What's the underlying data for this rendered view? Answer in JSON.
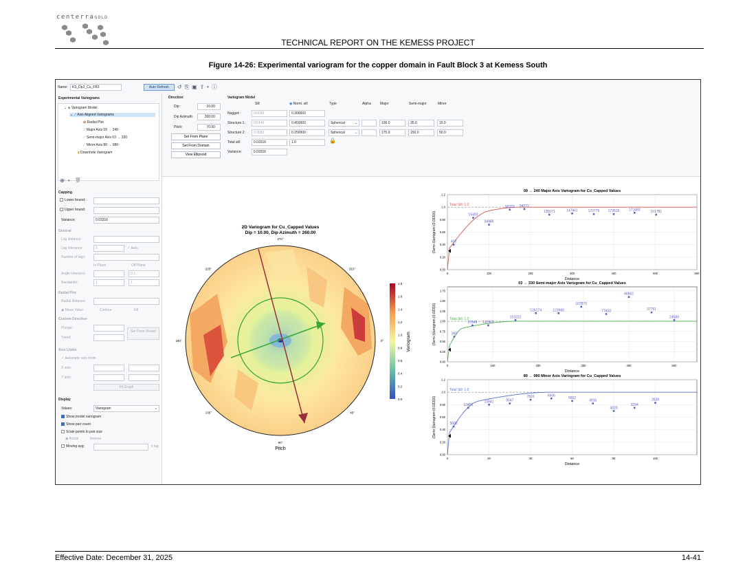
{
  "logo": {
    "word": "centerra",
    "word_gold": "GOLD"
  },
  "report": {
    "header": "TECHNICAL REPORT ON THE KEMESS PROJECT",
    "caption": "Figure 14-26: Experimental variogram for the copper domain in Fault Block 3 at Kemess South",
    "footer_left": "Effective Date: December 31, 2025",
    "footer_right": "14-41"
  },
  "toolbar": {
    "name_label": "Name:",
    "name_value": "KS_Dp2_Cu_FB3",
    "auto_refresh": "Auto Refresh"
  },
  "tree": {
    "heading": "Experimental Variograms",
    "items": [
      "Variogram Model",
      "Axis Aligned Variograms",
      "Radial Plot",
      "Major Axis 09 → 240",
      "Semi-major Axis 03 → 330",
      "Minor Axis 80 → 080",
      "Downhole Variogram"
    ]
  },
  "capping": {
    "heading": "Capping",
    "lower": "Lower bound:",
    "upper": "Upper bound:",
    "variance_label": "Variance:",
    "variance_value": "0.03316"
  },
  "general": {
    "heading": "General",
    "lag_distance": "Lag distance:",
    "lag_tolerance": "Lag tolerance:",
    "lag_tol_value": "0",
    "auto": "Auto",
    "num_lags": "Number of lags:",
    "in_plane": "In Plane",
    "off_plane": "Off Plane",
    "angle_tol": "Angle tolerance:",
    "angle_off_value": "0.1",
    "bandwidth": "Bandwidth:",
    "bw_in": "1",
    "bw_off": "1"
  },
  "radial": {
    "heading": "Radial Plot",
    "radial_distance": "Radial distance:",
    "mean_value": "Mean Value",
    "contour": "Contour",
    "fill": "Fill"
  },
  "custom": {
    "heading": "Custom Direction",
    "plunge": "Plunge:",
    "trend": "Trend:",
    "set_from_viewer": "Set From Viewer"
  },
  "axis_limits": {
    "heading": "Axis Limits",
    "auto": "Automatic axis limits",
    "xaxis": "X axis:",
    "yaxis": "Y axis:",
    "fit": "Fit Graph"
  },
  "display": {
    "heading": "Display",
    "values_label": "Values:",
    "values_value": "Variogram",
    "show_model": "Show model variogram",
    "show_pair": "Show pair count",
    "scale_points": "Scale points to pair size",
    "actual": "Actual",
    "inverse": "Inverse",
    "moving_avg": "Moving avg:",
    "lag_unit": "x lag"
  },
  "direction": {
    "heading": "Direction",
    "dip_label": "Dip:",
    "dip": "10.00",
    "azimuth_label": "Dip Azimuth:",
    "azimuth": "260.00",
    "pitch_label": "Pitch:",
    "pitch": "70.00",
    "set_from_plane": "Set From Plane",
    "set_from_domain": "Set From Domain",
    "view_ellipsoid": "View Ellipsoid"
  },
  "model": {
    "heading": "Variogram Model",
    "cols": {
      "sill": "Sill",
      "norm_sill": "Norm. sill",
      "type": "Type",
      "alpha": "Alpha",
      "major": "Major",
      "semi": "Semi-major",
      "minor": "Minor"
    },
    "rows": [
      {
        "label": "Nugget:",
        "sill": "0.0099",
        "norm": "0.300000",
        "type": "",
        "major": "",
        "semi": "",
        "minor": ""
      },
      {
        "label": "Structure 1:",
        "sill": "0.0149",
        "norm": "0.450000",
        "type": "Spherical",
        "major": "100.0",
        "semi": "35.0",
        "minor": "15.0"
      },
      {
        "label": "Structure 2:",
        "sill": "0.0083",
        "norm": "0.250000",
        "type": "Spherical",
        "major": "175.0",
        "semi": "150.0",
        "minor": "50.0"
      }
    ],
    "total_label": "Total sill:",
    "total_sill": "0.03316",
    "total_norm": "1.0",
    "variance_label": "Variance:",
    "variance": "0.03316"
  },
  "radial_plot": {
    "title": "2D Variogram for Cu_Capped Values",
    "subtitle": "Dip = 10.00, Dip Azimuth = 260.00",
    "angles": [
      {
        "label": "270°"
      },
      {
        "label": "315°"
      },
      {
        "label": "0°"
      },
      {
        "label": "45°"
      },
      {
        "label": "90°"
      },
      {
        "label": "135°"
      },
      {
        "label": "180°"
      },
      {
        "label": "225°"
      }
    ],
    "xlabel": "Pitch",
    "colorbar_label": "Variogram",
    "colorbar_ticks": [
      "0.0",
      "0.2",
      "0.4",
      "0.6",
      "0.8",
      "1.0",
      "1.2",
      "1.4",
      "1.6",
      "1.8"
    ]
  },
  "chart_data": [
    {
      "type": "scatter",
      "title": "09 → 240 Major Axis Variogram for Cu_Capped Values",
      "xlabel": "Distance",
      "ylabel": "(Semi-)Variogram (0.03316)",
      "xlim": [
        0,
        600
      ],
      "ylim": [
        0,
        1.2
      ],
      "xticks": [
        0,
        100,
        200,
        300,
        400,
        500,
        600
      ],
      "yticks": [
        0,
        0.2,
        0.4,
        0.6,
        0.8,
        1.0,
        1.2
      ],
      "sill_label": "Total Sill: 1.0",
      "model": {
        "nugget": 0.3,
        "structures": [
          {
            "sill": 0.45,
            "range": 100
          },
          {
            "sill": 0.25,
            "range": 175
          }
        ]
      },
      "points": [
        {
          "x": 15,
          "y": 0.4,
          "label": "400"
        },
        {
          "x": 62,
          "y": 0.83,
          "label": "15493"
        },
        {
          "x": 100,
          "y": 0.72,
          "label": "34486"
        },
        {
          "x": 150,
          "y": 0.96,
          "label": "96279"
        },
        {
          "x": 185,
          "y": 0.97,
          "label": "84272"
        },
        {
          "x": 245,
          "y": 0.88,
          "label": "135071"
        },
        {
          "x": 300,
          "y": 0.9,
          "label": "147461"
        },
        {
          "x": 352,
          "y": 0.89,
          "label": "170776"
        },
        {
          "x": 400,
          "y": 0.89,
          "label": "172515"
        },
        {
          "x": 450,
          "y": 0.91,
          "label": "171683"
        },
        {
          "x": 502,
          "y": 0.88,
          "label": "161781"
        }
      ]
    },
    {
      "type": "scatter",
      "title": "03 → 330 Semi-major Axis Variogram for Cu_Capped Values",
      "xlabel": "Distance",
      "ylabel": "(Semi-)Variogram (0.03316)",
      "xlim": [
        0,
        550
      ],
      "ylim": [
        0,
        1.85
      ],
      "xticks": [
        0,
        100,
        200,
        300,
        400,
        500
      ],
      "yticks": [
        0,
        0.25,
        0.5,
        0.75,
        1.0,
        1.25,
        1.5,
        1.75
      ],
      "sill_label": "Total Sill: 1.0",
      "model": {
        "nugget": 0.3,
        "structures": [
          {
            "sill": 0.45,
            "range": 35
          },
          {
            "sill": 0.25,
            "range": 150
          }
        ]
      },
      "points": [
        {
          "x": 15,
          "y": 0.62,
          "label": "369"
        },
        {
          "x": 55,
          "y": 0.9,
          "label": "37548"
        },
        {
          "x": 90,
          "y": 0.9,
          "label": "117907"
        },
        {
          "x": 150,
          "y": 1.03,
          "label": "153222"
        },
        {
          "x": 195,
          "y": 1.2,
          "label": "126274"
        },
        {
          "x": 245,
          "y": 1.2,
          "label": "123665"
        },
        {
          "x": 295,
          "y": 1.36,
          "label": "107870"
        },
        {
          "x": 350,
          "y": 1.18,
          "label": "77433"
        },
        {
          "x": 400,
          "y": 1.6,
          "label": "46662"
        },
        {
          "x": 450,
          "y": 1.22,
          "label": "37751"
        },
        {
          "x": 500,
          "y": 1.03,
          "label": "24589"
        }
      ]
    },
    {
      "type": "scatter",
      "title": "80 → 080 Minor Axis Variogram for Cu_Capped Values",
      "xlabel": "Distance",
      "ylabel": "(Semi-)Variogram (0.03316)",
      "xlim": [
        0,
        120
      ],
      "ylim": [
        0,
        1.2
      ],
      "xticks": [
        0,
        20,
        40,
        60,
        80,
        100
      ],
      "yticks": [
        0,
        0.2,
        0.4,
        0.6,
        0.8,
        1.0,
        1.2
      ],
      "sill_label": "Total Sill: 1.0",
      "model": {
        "nugget": 0.3,
        "structures": [
          {
            "sill": 0.45,
            "range": 15
          },
          {
            "sill": 0.25,
            "range": 50
          }
        ]
      },
      "points": [
        {
          "x": 3,
          "y": 0.45,
          "label": "5602"
        },
        {
          "x": 10,
          "y": 0.75,
          "label": "12450"
        },
        {
          "x": 20,
          "y": 0.8,
          "label": "10641"
        },
        {
          "x": 30,
          "y": 0.82,
          "label": "9047"
        },
        {
          "x": 40,
          "y": 0.88,
          "label": "7816"
        },
        {
          "x": 50,
          "y": 0.9,
          "label": "6606"
        },
        {
          "x": 60,
          "y": 0.86,
          "label": "5652"
        },
        {
          "x": 70,
          "y": 0.82,
          "label": "4915"
        },
        {
          "x": 80,
          "y": 0.7,
          "label": "4020"
        },
        {
          "x": 90,
          "y": 0.75,
          "label": "3294"
        },
        {
          "x": 100,
          "y": 0.83,
          "label": "2628"
        }
      ]
    }
  ],
  "colors": {
    "major": "#d9534f",
    "semi": "#4cae4c",
    "minor": "#5a6fd6",
    "point": "#5a5fc8",
    "sill_dash": "#888888"
  }
}
